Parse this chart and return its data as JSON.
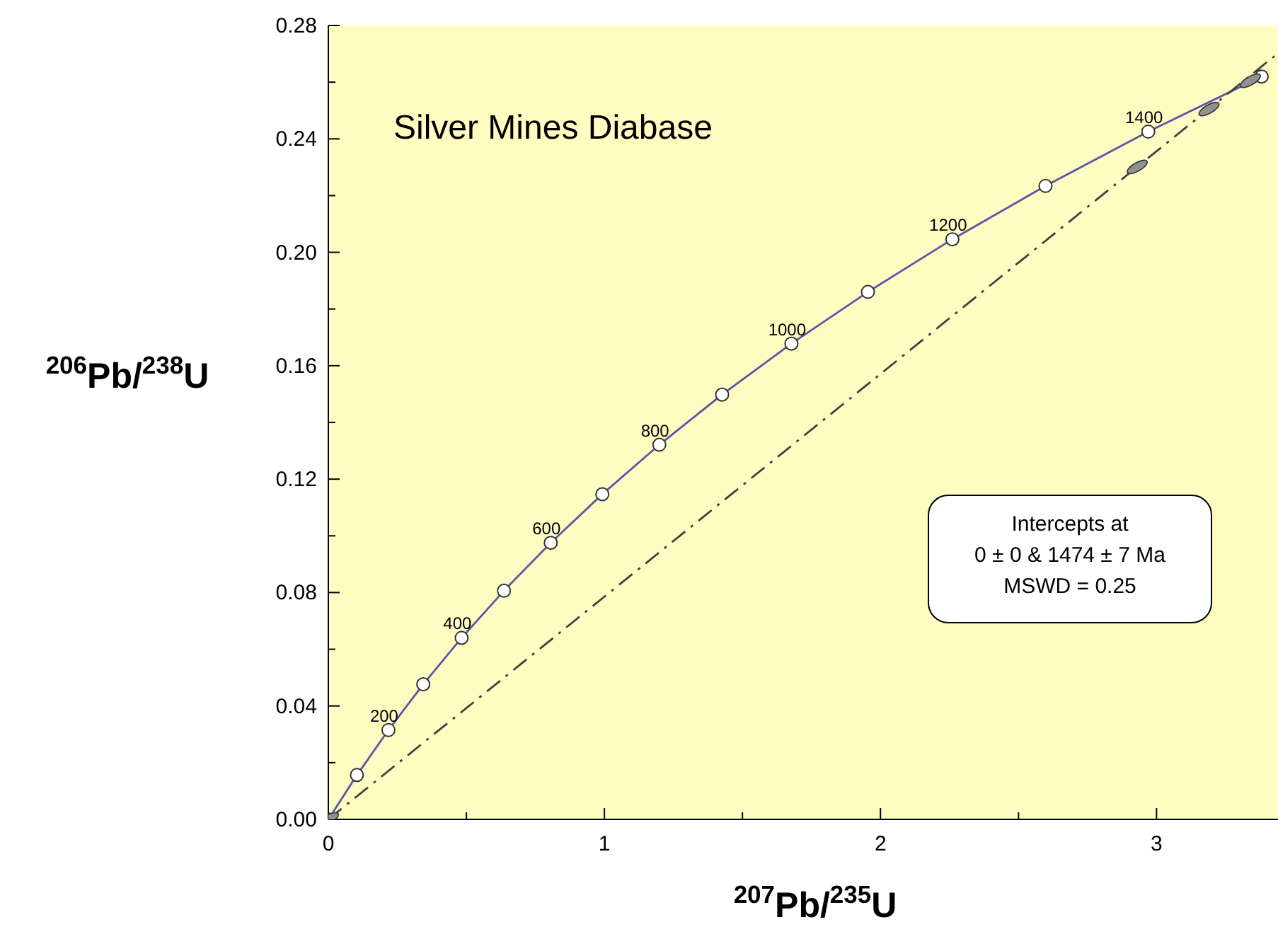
{
  "chart_data": {
    "type": "line",
    "title": "Silver Mines Diabase",
    "xlabel": "$^{207}$Pb/$^{235}$U",
    "ylabel": "$^{206}$Pb/$^{238}$U",
    "xlim": [
      0,
      3.44
    ],
    "ylim": [
      0,
      0.28
    ],
    "xticks": [
      0,
      {
        "value": 0.5,
        "label": null
      },
      1,
      {
        "value": 1.5,
        "label": null
      },
      2,
      {
        "value": 2.5,
        "label": null
      },
      3
    ],
    "yticks": [
      {
        "value": 0,
        "label": "0.00"
      },
      {
        "value": 0.02,
        "label": null
      },
      0.04,
      {
        "value": 0.06,
        "label": null
      },
      0.08,
      {
        "value": 0.1,
        "label": null
      },
      0.12,
      {
        "value": 0.14,
        "label": null
      },
      0.16,
      {
        "value": 0.18,
        "label": null
      },
      {
        "value": 0.2,
        "label": "0.20"
      },
      {
        "value": 0.22,
        "label": null
      },
      0.24,
      {
        "value": 0.26,
        "label": null
      },
      0.28
    ],
    "grid": false,
    "series": [
      {
        "color": "#5858a8",
        "marker": "circle",
        "line_style": "solid",
        "x": [
          0,
          0.1035,
          0.21771,
          0.34375,
          0.48281,
          0.63623,
          0.8056,
          0.99255,
          1.19889,
          1.42638,
          1.67741,
          1.95458,
          2.26042,
          2.59778,
          2.97009,
          3.38101
        ],
        "values": [
          0,
          0.01563,
          0.03151,
          0.04764,
          0.06402,
          0.08065,
          0.09754,
          0.1147,
          0.13213,
          0.14982,
          0.16779,
          0.18603,
          0.20459,
          0.22342,
          0.24256,
          0.26199
        ]
      },
      {
        "type": "line",
        "color": "#404040",
        "line_style": "dashed",
        "x": [
          0,
          3.44
        ],
        "values": [
          0,
          0.2702
        ]
      },
      {
        "type": "scatter",
        "color": "#909090",
        "x": [
          0,
          2.93,
          3.19,
          3.34
        ],
        "values": [
          0,
          0.2301,
          0.2505,
          0.2605
        ]
      }
    ],
    "annotations": [
      {
        "text": "200",
        "x": 0.21771,
        "y": 0.03151
      },
      {
        "text": "400",
        "x": 0.48281,
        "y": 0.06402
      },
      {
        "text": "600",
        "x": 0.8056,
        "y": 0.09754
      },
      {
        "text": "800",
        "x": 1.19889,
        "y": 0.13213
      },
      {
        "text": "1000",
        "x": 1.67741,
        "y": 0.16779
      },
      {
        "text": "1200",
        "x": 2.26042,
        "y": 0.20459
      },
      {
        "text": "1400",
        "x": 2.97009,
        "y": 0.24256
      },
      "Intercepts at\n0 ± 0 & 1474 ± 7  Ma\nMSWD = 0.25"
    ]
  }
}
